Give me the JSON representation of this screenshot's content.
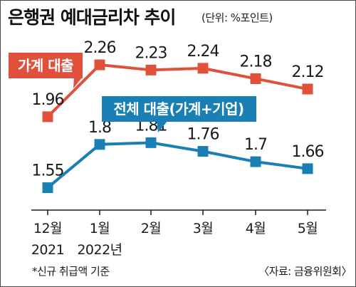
{
  "title": "은행권 예대금리차 추이",
  "subtitle": "(단위: %포인트)",
  "footnote": "*신규 취급액 기준",
  "source": "〈자료: 금융위원회〉",
  "colors": {
    "household": "#e0503a",
    "total": "#1a7fb5",
    "text": "#1a1a1a"
  },
  "chart_data": {
    "type": "line",
    "title": "은행권 예대금리차 추이",
    "unit": "%포인트",
    "categories": [
      "12월",
      "1월",
      "2월",
      "3월",
      "4월",
      "5월"
    ],
    "category_sublabels": [
      "2021",
      "2022년",
      "",
      "",
      "",
      ""
    ],
    "ylim": [
      1.4,
      2.4
    ],
    "grid": false,
    "series": [
      {
        "name": "가계 대출",
        "color": "#e0503a",
        "values": [
          1.96,
          2.26,
          2.23,
          2.24,
          2.18,
          2.12
        ],
        "labels": [
          "1.96",
          "2.26",
          "2.23",
          "2.24",
          "2.18",
          "2.12"
        ]
      },
      {
        "name": "전체 대출(가계+기업)",
        "color": "#1a7fb5",
        "values": [
          1.55,
          1.8,
          1.81,
          1.76,
          1.7,
          1.66
        ],
        "labels": [
          "1.55",
          "1.8",
          "1.81",
          "1.76",
          "1.7",
          "1.66"
        ]
      }
    ]
  }
}
